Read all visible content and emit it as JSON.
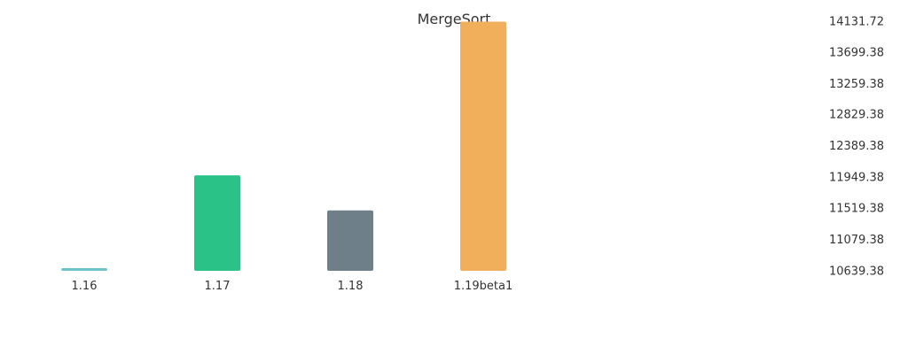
{
  "chart_data": {
    "type": "bar",
    "title": "MergeSort",
    "categories": [
      "1.16",
      "1.17",
      "1.18",
      "1.19beta1"
    ],
    "values": [
      10660,
      11975,
      11485,
      14125
    ],
    "colors": [
      "#6cc3c9",
      "#2ac287",
      "#6e7f89",
      "#f1ae5b"
    ],
    "y_ticks": [
      "10639.38",
      "11079.38",
      "11519.38",
      "11949.38",
      "12389.38",
      "12829.38",
      "13259.38",
      "13699.38",
      "14131.72"
    ],
    "ylim": [
      10639.38,
      14131.72
    ],
    "y_axis_position": "right",
    "grid": false,
    "legend": false
  }
}
